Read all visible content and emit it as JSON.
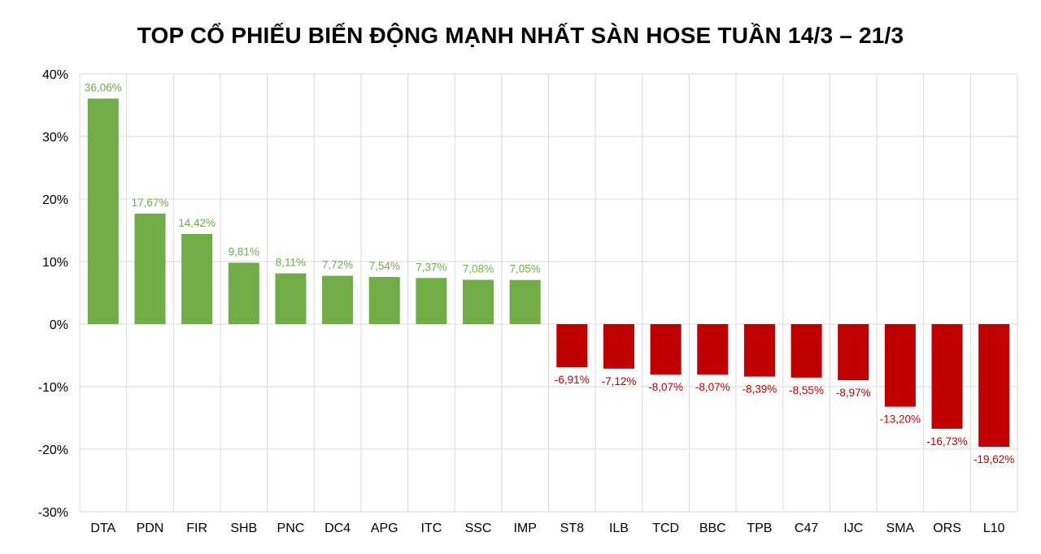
{
  "chart_data": {
    "type": "bar",
    "title": "TOP CỔ PHIẾU BIẾN ĐỘNG MẠNH NHẤT SÀN HOSE TUẦN 14/3 – 21/3",
    "xlabel": "",
    "ylabel": "",
    "ylim": [
      -30,
      40
    ],
    "y_ticks": [
      40,
      30,
      20,
      10,
      0,
      -10,
      -20,
      -30
    ],
    "y_tick_labels": [
      "40%",
      "30%",
      "20%",
      "10%",
      "0%",
      "-10%",
      "-20%",
      "-30%"
    ],
    "grid": true,
    "categories": [
      "DTA",
      "PDN",
      "FIR",
      "SHB",
      "PNC",
      "DC4",
      "APG",
      "ITC",
      "SSC",
      "IMP",
      "ST8",
      "ILB",
      "TCD",
      "BBC",
      "TPB",
      "C47",
      "IJC",
      "SMA",
      "ORS",
      "L10"
    ],
    "values": [
      36.06,
      17.67,
      14.42,
      9.81,
      8.11,
      7.72,
      7.54,
      7.37,
      7.08,
      7.05,
      -6.91,
      -7.12,
      -8.07,
      -8.07,
      -8.39,
      -8.55,
      -8.97,
      -13.2,
      -16.73,
      -19.62
    ],
    "data_labels": [
      "36,06%",
      "17,67%",
      "14,42%",
      "9,81%",
      "8,11%",
      "7,72%",
      "7,54%",
      "7,37%",
      "7,08%",
      "7,05%",
      "-6,91%",
      "-7,12%",
      "-8,07%",
      "-8,07%",
      "-8,39%",
      "-8,55%",
      "-8,97%",
      "-13,20%",
      "-16,73%",
      "-19,62%"
    ],
    "colors": {
      "positive": "#70AD47",
      "negative": "#C00000",
      "grid": "#D9D9D9"
    }
  }
}
